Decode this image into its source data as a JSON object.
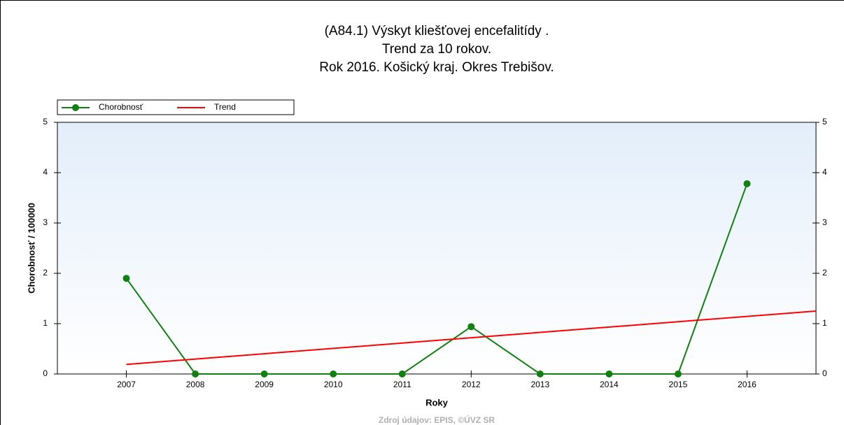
{
  "chart_data": {
    "type": "line",
    "title": [
      "(A84.1) Výskyt kliešťovej encefalitídy .",
      "Trend za 10 rokov.",
      "Rok 2016. Košický kraj. Okres Trebišov."
    ],
    "xlabel": "Roky",
    "ylabel": "Chorobnosť / 100000",
    "source": "Zdroj údajov: EPIS, ©ÚVZ SR",
    "xlim": [
      2006,
      2017
    ],
    "xticks": [
      2007,
      2008,
      2009,
      2010,
      2011,
      2012,
      2013,
      2014,
      2015,
      2016
    ],
    "ylim": [
      0,
      5
    ],
    "yticks": [
      0,
      1,
      2,
      3,
      4,
      5
    ],
    "y2lim": [
      0,
      5
    ],
    "y2ticks": [
      0,
      1,
      2,
      3,
      4,
      5
    ],
    "legend": "top-left",
    "series": [
      {
        "name": "Chorobnosť",
        "color": "#108010",
        "marker": true,
        "x": [
          2007,
          2008,
          2009,
          2010,
          2011,
          2012,
          2013,
          2014,
          2015,
          2016
        ],
        "values": [
          1.9,
          0,
          0,
          0,
          0,
          0.94,
          0,
          0,
          0,
          3.78
        ]
      },
      {
        "name": "Trend",
        "color": "#ff0000",
        "marker": false,
        "x": [
          2007,
          2017
        ],
        "values": [
          0.19,
          1.25
        ]
      }
    ]
  }
}
